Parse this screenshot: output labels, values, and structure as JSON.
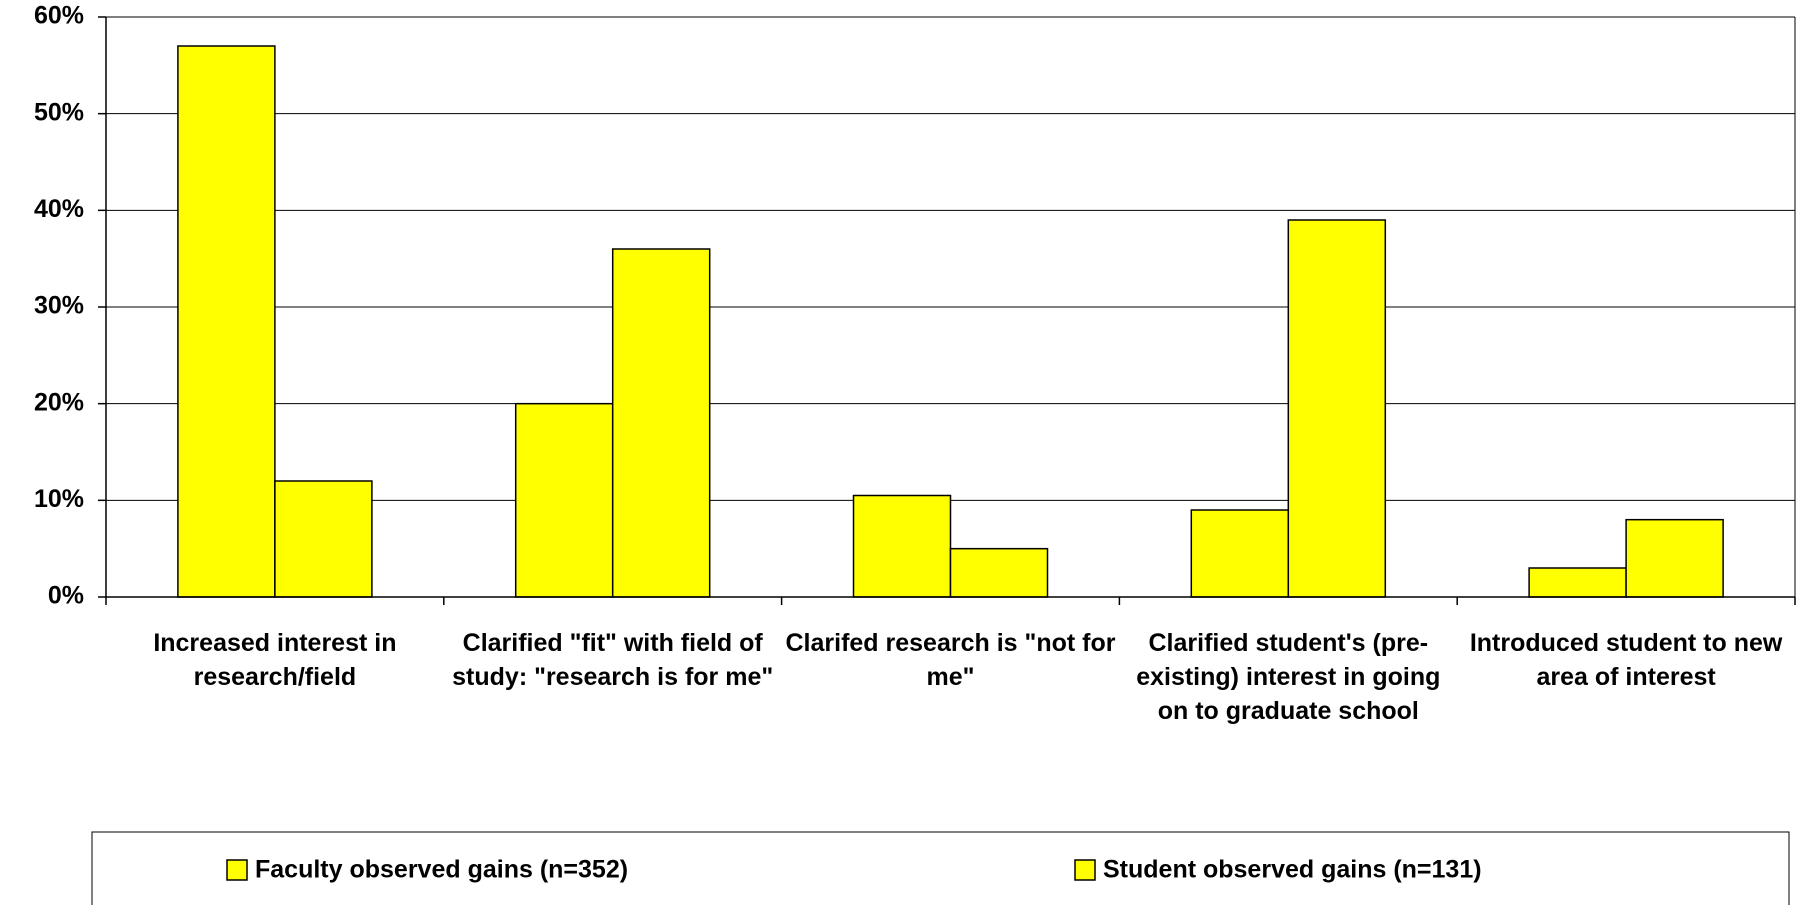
{
  "chart_data": {
    "type": "bar",
    "categories": [
      "Increased interest in research/field",
      "Clarified \"fit\" with field of study: \"research is for me\"",
      "Clarifed research is \"not for me\"",
      "Clarified student's (pre-existing) interest in going on to graduate school",
      "Introduced student to new area of interest"
    ],
    "series": [
      {
        "name": "Faculty observed gains (n=352)",
        "color": "#ffff00",
        "values": [
          57,
          20,
          10.5,
          9,
          3
        ]
      },
      {
        "name": "Student observed gains (n=131)",
        "color": "#ffff00",
        "values": [
          12,
          36,
          5,
          39,
          8
        ]
      }
    ],
    "ylim": [
      0,
      60
    ],
    "yticks": [
      {
        "value": 0,
        "label": "0%"
      },
      {
        "value": 10,
        "label": "10%"
      },
      {
        "value": 20,
        "label": "20%"
      },
      {
        "value": 30,
        "label": "30%"
      },
      {
        "value": 40,
        "label": "40%"
      },
      {
        "value": 50,
        "label": "50%"
      },
      {
        "value": 60,
        "label": "60%"
      }
    ],
    "grid": true,
    "legend": "bottom"
  }
}
